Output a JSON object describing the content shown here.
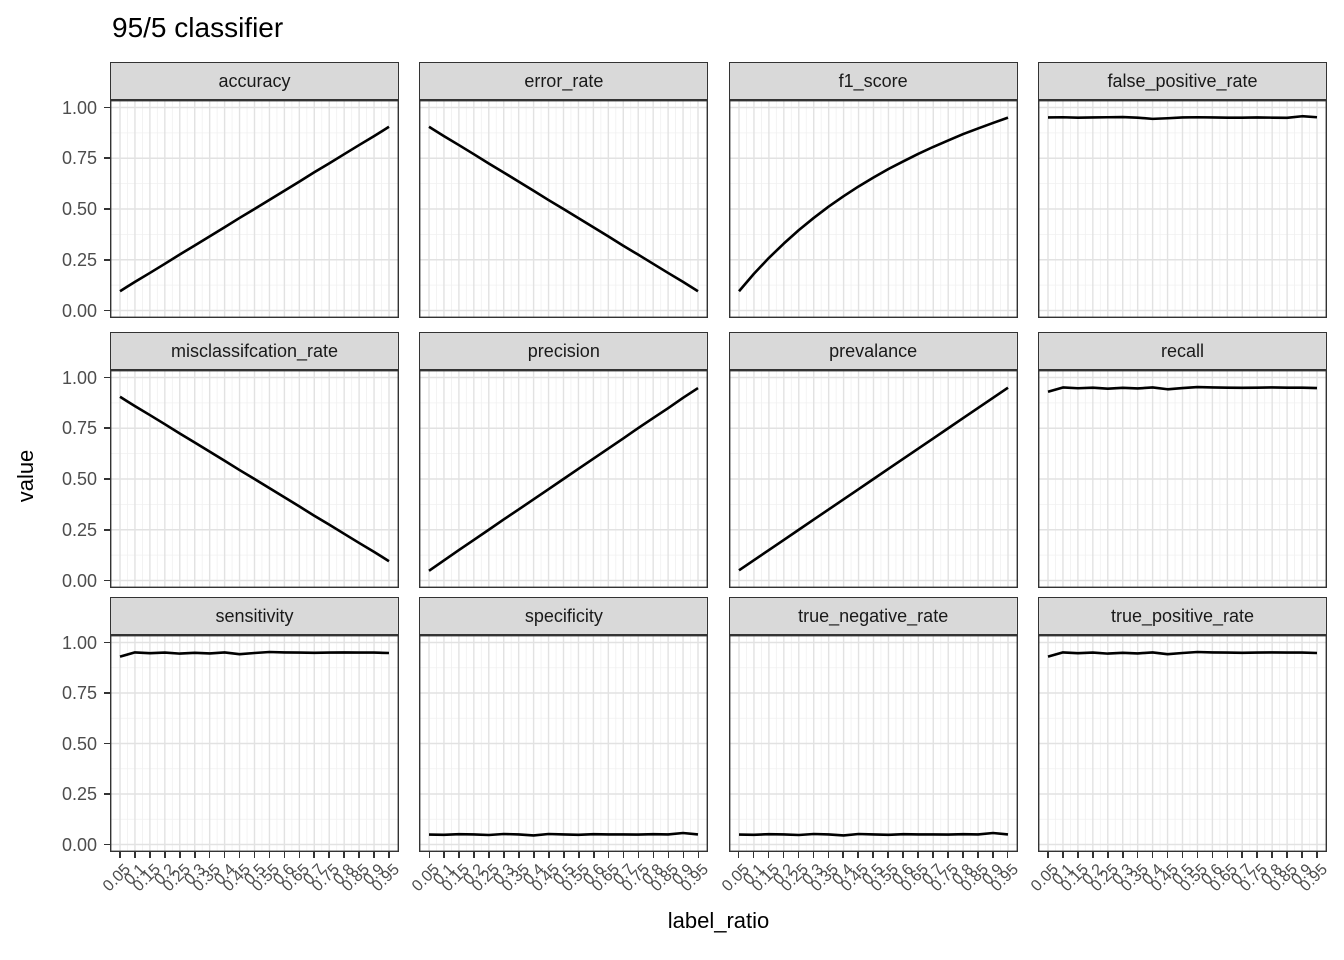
{
  "chart_data": {
    "type": "line",
    "title": "95/5 classifier",
    "xlabel": "label_ratio",
    "ylabel": "value",
    "legend": "none",
    "grid": true,
    "ylim": [
      0,
      1
    ],
    "x": [
      0.05,
      0.1,
      0.15,
      0.2,
      0.25,
      0.3,
      0.35,
      0.4,
      0.45,
      0.5,
      0.55,
      0.6,
      0.65,
      0.7,
      0.75,
      0.8,
      0.85,
      0.9,
      0.95
    ],
    "x_tick_labels": [
      "0.05",
      "0.1",
      "0.15",
      "0.2",
      "0.25",
      "0.3",
      "0.35",
      "0.4",
      "0.45",
      "0.5",
      "0.55",
      "0.6",
      "0.65",
      "0.7",
      "0.75",
      "0.8",
      "0.85",
      "0.9",
      "0.95"
    ],
    "y_tick_labels": [
      "0.00",
      "0.25",
      "0.50",
      "0.75",
      "1.00"
    ],
    "y_tick_values": [
      0,
      0.25,
      0.5,
      0.75,
      1
    ],
    "facets": [
      {
        "label": "accuracy",
        "values": [
          0.095,
          0.141,
          0.185,
          0.23,
          0.276,
          0.32,
          0.365,
          0.41,
          0.456,
          0.5,
          0.545,
          0.59,
          0.635,
          0.681,
          0.725,
          0.77,
          0.815,
          0.859,
          0.905
        ]
      },
      {
        "label": "error_rate",
        "values": [
          0.905,
          0.859,
          0.815,
          0.77,
          0.724,
          0.68,
          0.635,
          0.59,
          0.544,
          0.5,
          0.455,
          0.41,
          0.365,
          0.319,
          0.275,
          0.23,
          0.185,
          0.141,
          0.095
        ]
      },
      {
        "label": "f1_score",
        "values": [
          0.095,
          0.181,
          0.259,
          0.33,
          0.396,
          0.456,
          0.512,
          0.563,
          0.611,
          0.655,
          0.697,
          0.735,
          0.772,
          0.806,
          0.838,
          0.869,
          0.897,
          0.924,
          0.95
        ]
      },
      {
        "label": "false_positive_rate",
        "values": [
          0.951,
          0.952,
          0.95,
          0.951,
          0.952,
          0.953,
          0.95,
          0.944,
          0.947,
          0.951,
          0.952,
          0.951,
          0.95,
          0.95,
          0.951,
          0.95,
          0.949,
          0.957,
          0.952
        ]
      },
      {
        "label": "misclassifcation_rate",
        "values": [
          0.905,
          0.859,
          0.815,
          0.77,
          0.724,
          0.68,
          0.635,
          0.59,
          0.544,
          0.5,
          0.455,
          0.41,
          0.365,
          0.319,
          0.275,
          0.23,
          0.185,
          0.141,
          0.095
        ]
      },
      {
        "label": "precision",
        "values": [
          0.048,
          0.099,
          0.15,
          0.2,
          0.25,
          0.301,
          0.35,
          0.4,
          0.45,
          0.5,
          0.55,
          0.6,
          0.65,
          0.7,
          0.751,
          0.8,
          0.849,
          0.9,
          0.948
        ]
      },
      {
        "label": "prevalance",
        "values": [
          0.05,
          0.1,
          0.15,
          0.2,
          0.25,
          0.3,
          0.35,
          0.4,
          0.45,
          0.5,
          0.55,
          0.6,
          0.65,
          0.7,
          0.75,
          0.8,
          0.85,
          0.9,
          0.95
        ]
      },
      {
        "label": "recall",
        "values": [
          0.93,
          0.951,
          0.947,
          0.95,
          0.945,
          0.949,
          0.946,
          0.951,
          0.942,
          0.948,
          0.953,
          0.951,
          0.95,
          0.949,
          0.95,
          0.951,
          0.95,
          0.95,
          0.948
        ]
      },
      {
        "label": "sensitivity",
        "values": [
          0.93,
          0.951,
          0.947,
          0.95,
          0.945,
          0.949,
          0.946,
          0.951,
          0.942,
          0.948,
          0.953,
          0.951,
          0.95,
          0.949,
          0.95,
          0.951,
          0.95,
          0.95,
          0.948
        ]
      },
      {
        "label": "specificity",
        "values": [
          0.049,
          0.048,
          0.051,
          0.05,
          0.047,
          0.052,
          0.05,
          0.045,
          0.052,
          0.05,
          0.048,
          0.051,
          0.05,
          0.05,
          0.049,
          0.051,
          0.05,
          0.057,
          0.05
        ]
      },
      {
        "label": "true_negative_rate",
        "values": [
          0.049,
          0.048,
          0.051,
          0.05,
          0.047,
          0.052,
          0.05,
          0.045,
          0.052,
          0.05,
          0.048,
          0.051,
          0.05,
          0.05,
          0.049,
          0.051,
          0.05,
          0.057,
          0.05
        ]
      },
      {
        "label": "true_positive_rate",
        "values": [
          0.93,
          0.951,
          0.947,
          0.95,
          0.945,
          0.949,
          0.946,
          0.951,
          0.942,
          0.948,
          0.953,
          0.951,
          0.95,
          0.949,
          0.95,
          0.951,
          0.95,
          0.95,
          0.948
        ]
      }
    ],
    "colors": {
      "line": "#000000",
      "strip_fill": "#d9d9d9",
      "panel_border": "#333333",
      "grid_major": "#e2e2e2",
      "grid_minor": "#f0f0f0",
      "axis_text": "#4d4d4d",
      "tick_mark": "#333333",
      "background": "#ffffff"
    }
  }
}
